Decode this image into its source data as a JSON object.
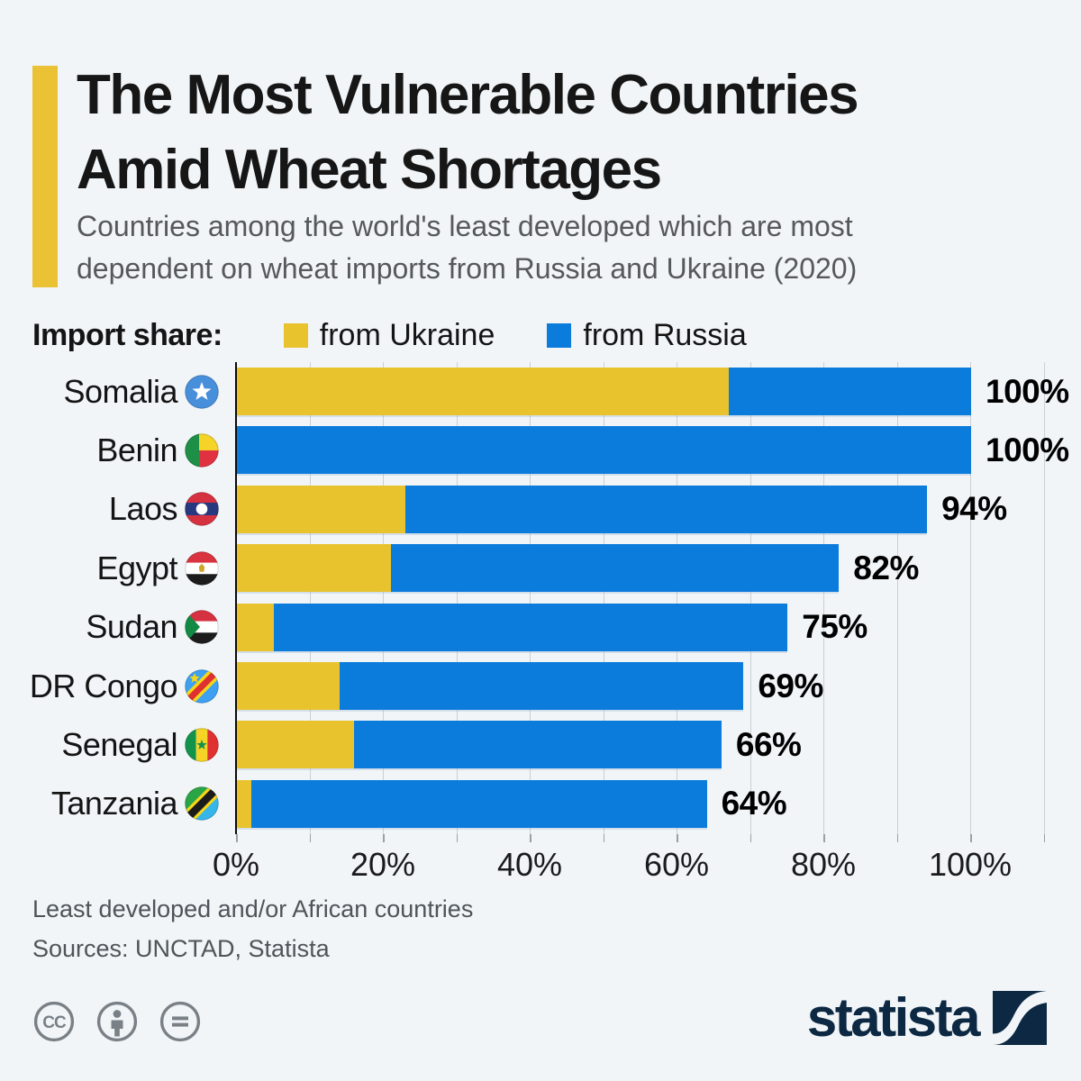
{
  "header": {
    "title_line1": "The Most Vulnerable Countries",
    "title_line2": "Amid Wheat Shortages",
    "subtitle_line1": "Countries among the world's least developed which are most",
    "subtitle_line2": "dependent on wheat imports from Russia and Ukraine (2020)",
    "accent_color": "#eac233"
  },
  "legend": {
    "label": "Import share:",
    "items": [
      {
        "label": "from Ukraine",
        "color": "#e9c32d"
      },
      {
        "label": "from Russia",
        "color": "#0b7bdc"
      }
    ]
  },
  "chart_data": {
    "type": "bar",
    "orientation": "horizontal",
    "stacked": true,
    "unit": "%",
    "categories": [
      "Somalia",
      "Benin",
      "Laos",
      "Egypt",
      "Sudan",
      "DR Congo",
      "Senegal",
      "Tanzania"
    ],
    "flags": [
      "flag-somalia",
      "flag-benin",
      "flag-laos",
      "flag-egypt",
      "flag-sudan",
      "flag-dr-congo",
      "flag-senegal",
      "flag-tanzania"
    ],
    "series": [
      {
        "name": "from Ukraine",
        "color": "#e9c32d",
        "values": [
          67,
          0,
          23,
          21,
          5,
          14,
          16,
          2
        ]
      },
      {
        "name": "from Russia",
        "color": "#0b7bdc",
        "values": [
          33,
          100,
          71,
          61,
          70,
          55,
          50,
          62
        ]
      }
    ],
    "totals": [
      100,
      100,
      94,
      82,
      75,
      69,
      66,
      64
    ],
    "total_labels": [
      "100%",
      "100%",
      "94%",
      "82%",
      "75%",
      "69%",
      "66%",
      "64%"
    ],
    "x_tick_labels": [
      "0%",
      "20%",
      "40%",
      "60%",
      "80%",
      "100%"
    ],
    "x_tick_values": [
      0,
      20,
      40,
      60,
      80,
      100
    ],
    "xlim": [
      0,
      110
    ],
    "gridline_step": 10,
    "grid": true,
    "legend_position": "top"
  },
  "footer": {
    "note": "Least developed and/or African countries",
    "sources": "Sources: UNCTAD, Statista"
  },
  "branding": {
    "logo_text": "statista",
    "logo_color": "#0c2842",
    "license_icons": [
      "cc-icon",
      "attribution-person-icon",
      "equals-icon"
    ]
  }
}
